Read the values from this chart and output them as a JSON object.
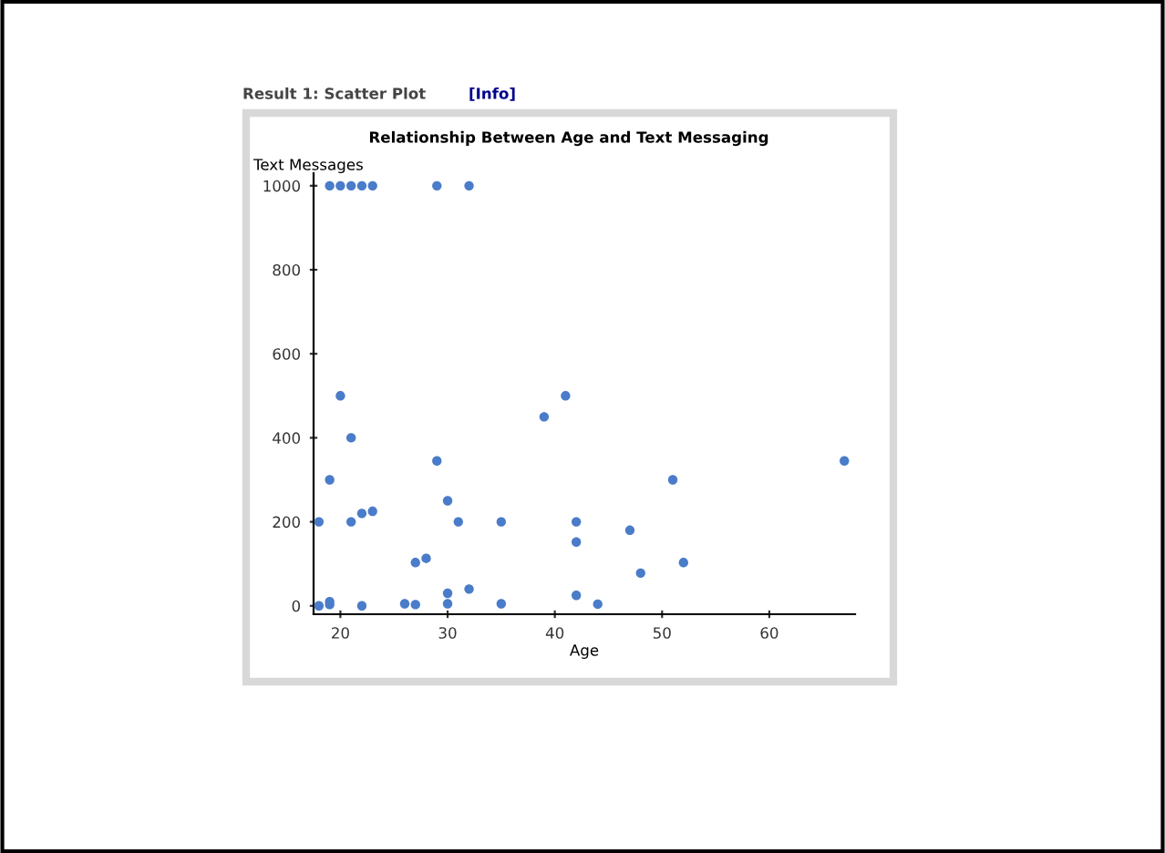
{
  "chart_data": {
    "type": "scatter",
    "title": "Relationship Between Age and Text Messaging",
    "xlabel": "Age",
    "ylabel": "Text Messages",
    "annotations": [
      "Result 1: Scatter Plot",
      "[Info]"
    ],
    "x": [
      19,
      20,
      21,
      22,
      23,
      29,
      32,
      18,
      18,
      19,
      19,
      19,
      20,
      21,
      21,
      22,
      23,
      22,
      26,
      27,
      27,
      28,
      29,
      30,
      30,
      30,
      31,
      32,
      35,
      35,
      39,
      41,
      42,
      42,
      42,
      44,
      47,
      48,
      51,
      52,
      67
    ],
    "series": [
      {
        "color": "#4a7cc9",
        "values": [
          1000,
          1000,
          1000,
          1000,
          1000,
          1000,
          1000,
          200,
          0,
          10,
          3,
          300,
          500,
          400,
          200,
          220,
          225,
          0,
          5,
          103,
          3,
          113,
          345,
          250,
          30,
          5,
          200,
          40,
          200,
          5,
          450,
          500,
          200,
          152,
          25,
          4,
          180,
          78,
          300,
          103,
          345
        ]
      }
    ],
    "xlim": [
      17.5,
      68
    ],
    "ylim": [
      -20,
      1030
    ],
    "xticks": [
      20,
      30,
      40,
      50,
      60
    ],
    "yticks": [
      0,
      200,
      400,
      600,
      800,
      1000
    ],
    "grid": false,
    "legend": false,
    "marker": "circle"
  }
}
